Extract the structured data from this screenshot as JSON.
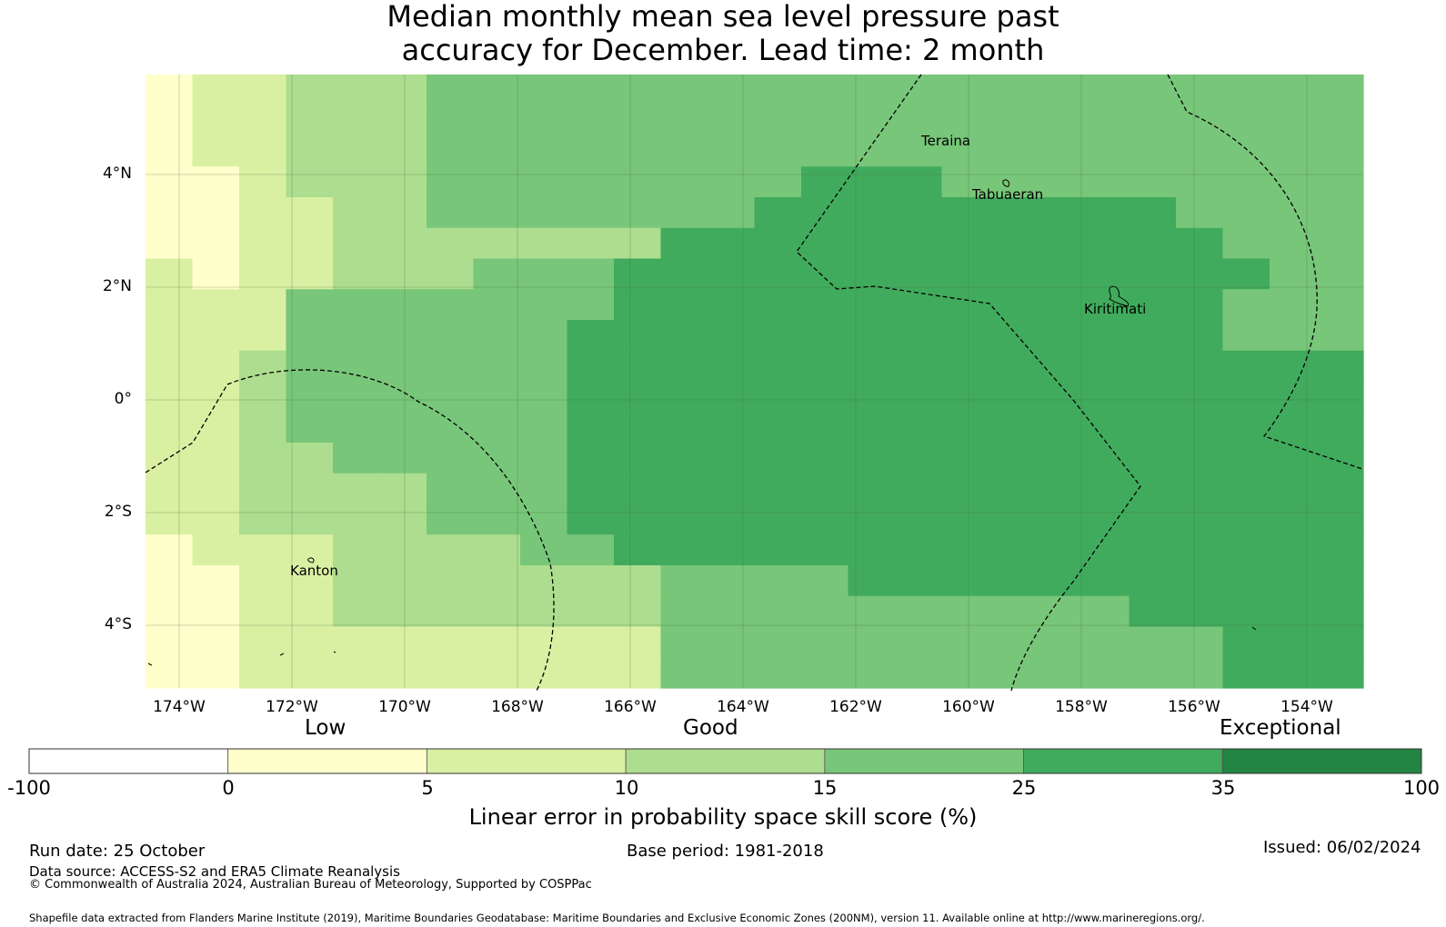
{
  "title": {
    "line1": "Median monthly mean sea level pressure past",
    "line2": "accuracy for December. Lead time: 2 month"
  },
  "map": {
    "lat_ticks": [
      "4°N",
      "2°N",
      "0°",
      "2°S",
      "4°S"
    ],
    "lon_ticks": [
      "174°W",
      "172°W",
      "170°W",
      "168°W",
      "166°W",
      "164°W",
      "162°W",
      "160°W",
      "158°W",
      "156°W",
      "154°W"
    ],
    "places": {
      "teraina": "Teraina",
      "tabuaeran": "Tabuaeran",
      "kiritimati": "Kiritimati",
      "kanton": "Kanton"
    }
  },
  "colors": {
    "c0": "#ffffff",
    "c1": "#ffffcc",
    "c2": "#d9f0a3",
    "c3": "#addd8e",
    "c4": "#78c679",
    "c5": "#41ab5d",
    "c6": "#238443"
  },
  "legend": {
    "categories": [
      "Low",
      "Good",
      "Exceptional"
    ],
    "ticks": [
      "-100",
      "0",
      "5",
      "10",
      "15",
      "25",
      "35",
      "100"
    ],
    "title": "Linear error in probability space skill score (%)"
  },
  "footer": {
    "run_date": "Run date: 25 October",
    "base_period": "Base period: 1981-2018",
    "issued": "Issued: 06/02/2024",
    "data_source": "Data source: ACCESS-S2 and ERA5 Climate Reanalysis",
    "copyright": "© Commonwealth of Australia 2024, Australian Bureau of Meteorology, Supported by COSPPac",
    "shapefile": "Shapefile data extracted from Flanders Marine Institute (2019), Maritime Boundaries Geodatabase: Maritime Boundaries and Exclusive Economic Zones (200NM), version 11. Available online at http://www.marineregions.org/."
  }
}
